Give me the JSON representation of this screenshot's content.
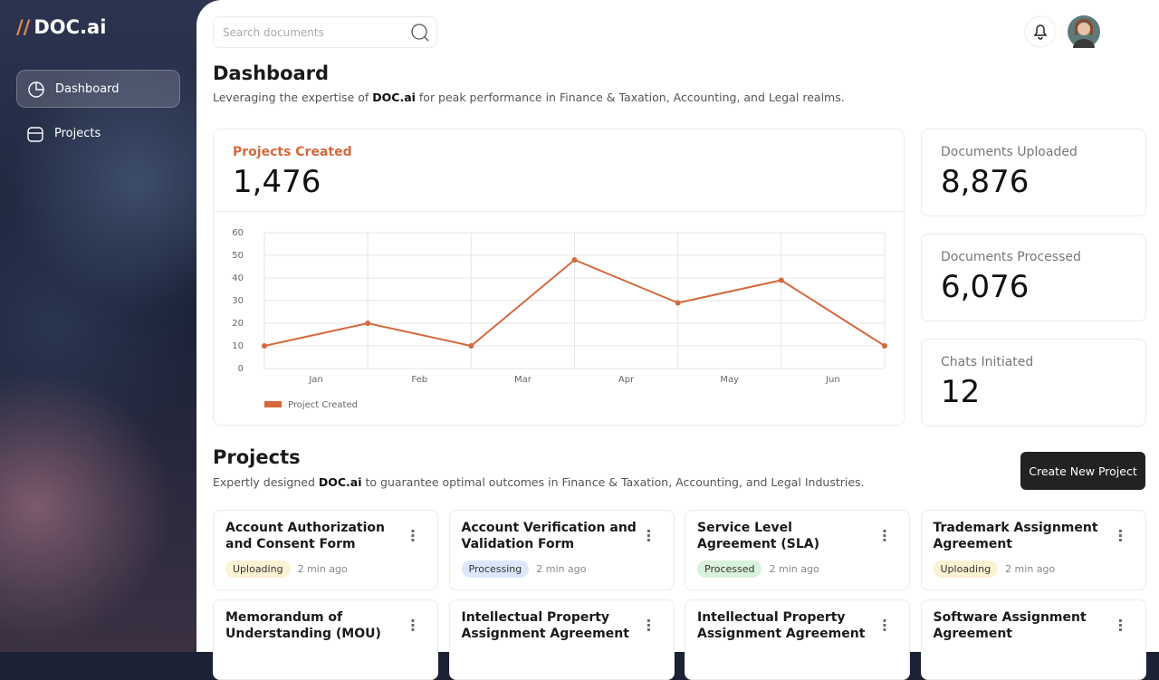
{
  "sidebar": {
    "brand": "DOC.ai",
    "nav": [
      {
        "label": "Dashboard",
        "active": true
      },
      {
        "label": "Projects",
        "active": false
      }
    ]
  },
  "search": {
    "placeholder": "Search documents"
  },
  "dashboard": {
    "title": "Dashboard",
    "subtitle_before": "Leveraging the expertise of ",
    "subtitle_brand": "DOC.ai",
    "subtitle_after": " for peak performance in Finance & Taxation, Accounting, and Legal realms."
  },
  "stats": [
    {
      "label": "Projects Created",
      "value": "1,476"
    },
    {
      "label": "Documents Uploaded",
      "value": "8,876"
    },
    {
      "label": "Documents Processed",
      "value": "6,076"
    },
    {
      "label": "Chats Initiated",
      "value": "12"
    }
  ],
  "chart_data": {
    "type": "line",
    "categories": [
      "Jan",
      "Feb",
      "Mar",
      "Apr",
      "May",
      "Jun",
      null
    ],
    "series": [
      {
        "name": "Project Created",
        "color": "#d4693c",
        "values": [
          10,
          20,
          10,
          48,
          29,
          39,
          10
        ]
      }
    ],
    "ylim": [
      0,
      60
    ],
    "yticks": [
      0,
      10,
      20,
      30,
      40,
      50,
      60
    ],
    "grid": true
  },
  "projects": {
    "title": "Projects",
    "subtitle_before": "Expertly designed ",
    "subtitle_brand": "DOC.ai",
    "subtitle_after": " to guarantee optimal outcomes in Finance & Taxation, Accounting, and Legal Industries.",
    "button": "Create New Project",
    "cards": [
      {
        "title": "Account Authorization and Consent Form",
        "status": "Uploading",
        "time": "2 min ago"
      },
      {
        "title": "Account Verification and Validation Form",
        "status": "Processing",
        "time": "2 min ago"
      },
      {
        "title": "Service Level Agreement (SLA)",
        "status": "Processed",
        "time": "2 min ago"
      },
      {
        "title": "Trademark Assignment Agreement",
        "status": "Uploading",
        "time": "2 min ago"
      },
      {
        "title": "Memorandum of Understanding (MOU)"
      },
      {
        "title": "Intellectual Property Assignment Agreement"
      },
      {
        "title": "Intellectual Property Assignment Agreement"
      },
      {
        "title": "Software Assignment Agreement"
      }
    ]
  }
}
